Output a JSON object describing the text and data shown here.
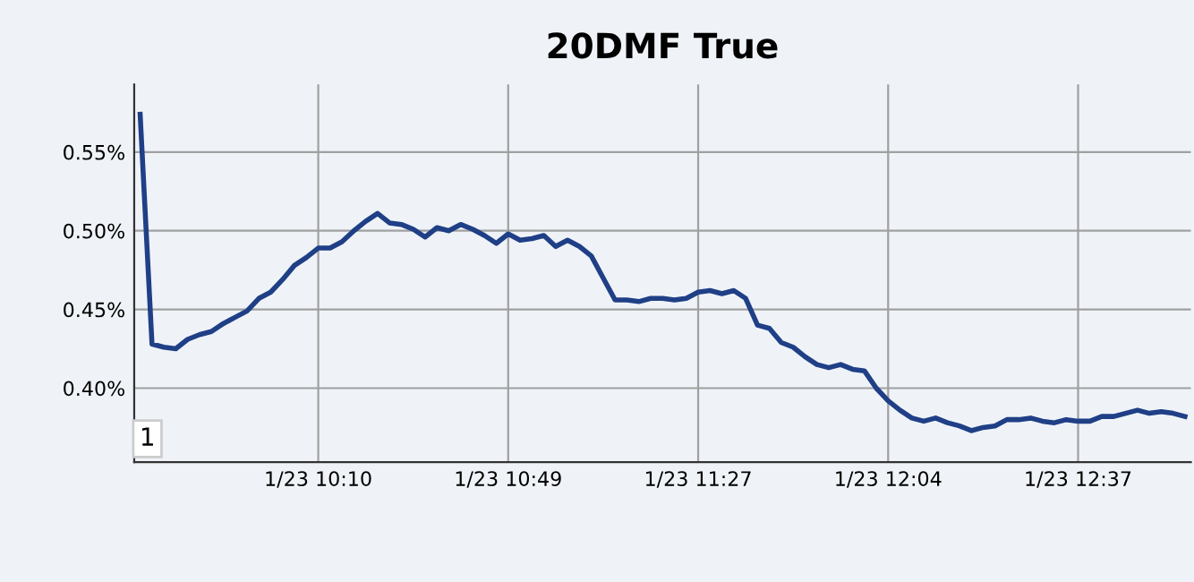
{
  "chart_data": {
    "type": "line",
    "title": "20DMF True",
    "categories": [
      null,
      null,
      null,
      null,
      null,
      null,
      null,
      null,
      null,
      null,
      null,
      null,
      null,
      null,
      null,
      "1/23 10:10",
      null,
      null,
      null,
      null,
      null,
      null,
      null,
      null,
      null,
      null,
      null,
      null,
      null,
      null,
      null,
      "1/23 10:49",
      null,
      null,
      null,
      null,
      null,
      null,
      null,
      null,
      null,
      null,
      null,
      null,
      null,
      null,
      null,
      "1/23 11:27",
      null,
      null,
      null,
      null,
      null,
      null,
      null,
      null,
      null,
      null,
      null,
      null,
      null,
      null,
      null,
      "1/23 12:04",
      null,
      null,
      null,
      null,
      null,
      null,
      null,
      null,
      null,
      null,
      null,
      null,
      null,
      null,
      null,
      "1/23 12:37",
      null,
      null,
      null,
      null,
      null,
      null,
      null,
      null,
      null
    ],
    "series": [
      {
        "color": "#1f3f86",
        "values": [
          0.574,
          0.428,
          0.426,
          0.425,
          0.431,
          0.434,
          0.436,
          0.441,
          0.445,
          0.449,
          0.457,
          0.461,
          0.469,
          0.478,
          0.483,
          0.489,
          0.489,
          0.493,
          0.5,
          0.506,
          0.511,
          0.505,
          0.504,
          0.501,
          0.496,
          0.502,
          0.5,
          0.504,
          0.501,
          0.497,
          0.492,
          0.498,
          0.494,
          0.495,
          0.497,
          0.49,
          0.494,
          0.49,
          0.484,
          0.47,
          0.456,
          0.456,
          0.455,
          0.457,
          0.457,
          0.456,
          0.457,
          0.461,
          0.462,
          0.46,
          0.462,
          0.457,
          0.44,
          0.438,
          0.429,
          0.426,
          0.42,
          0.415,
          0.413,
          0.415,
          0.412,
          0.411,
          0.4,
          0.392,
          0.386,
          0.381,
          0.379,
          0.381,
          0.378,
          0.376,
          0.373,
          0.375,
          0.376,
          0.38,
          0.38,
          0.381,
          0.379,
          0.378,
          0.38,
          0.379,
          0.379,
          0.382,
          0.382,
          0.384,
          0.386,
          0.384,
          0.385,
          0.384,
          0.382
        ]
      }
    ],
    "ylim": [
      0.353,
      0.593
    ],
    "yticks": [
      {
        "value": 0.4,
        "label": "0.40%"
      },
      {
        "value": 0.45,
        "label": "0.45%"
      },
      {
        "value": 0.5,
        "label": "0.50%"
      },
      {
        "value": 0.55,
        "label": "0.55%"
      }
    ],
    "grid": true,
    "marker": "none",
    "line_style": "solid",
    "annotations": [
      "1"
    ]
  }
}
